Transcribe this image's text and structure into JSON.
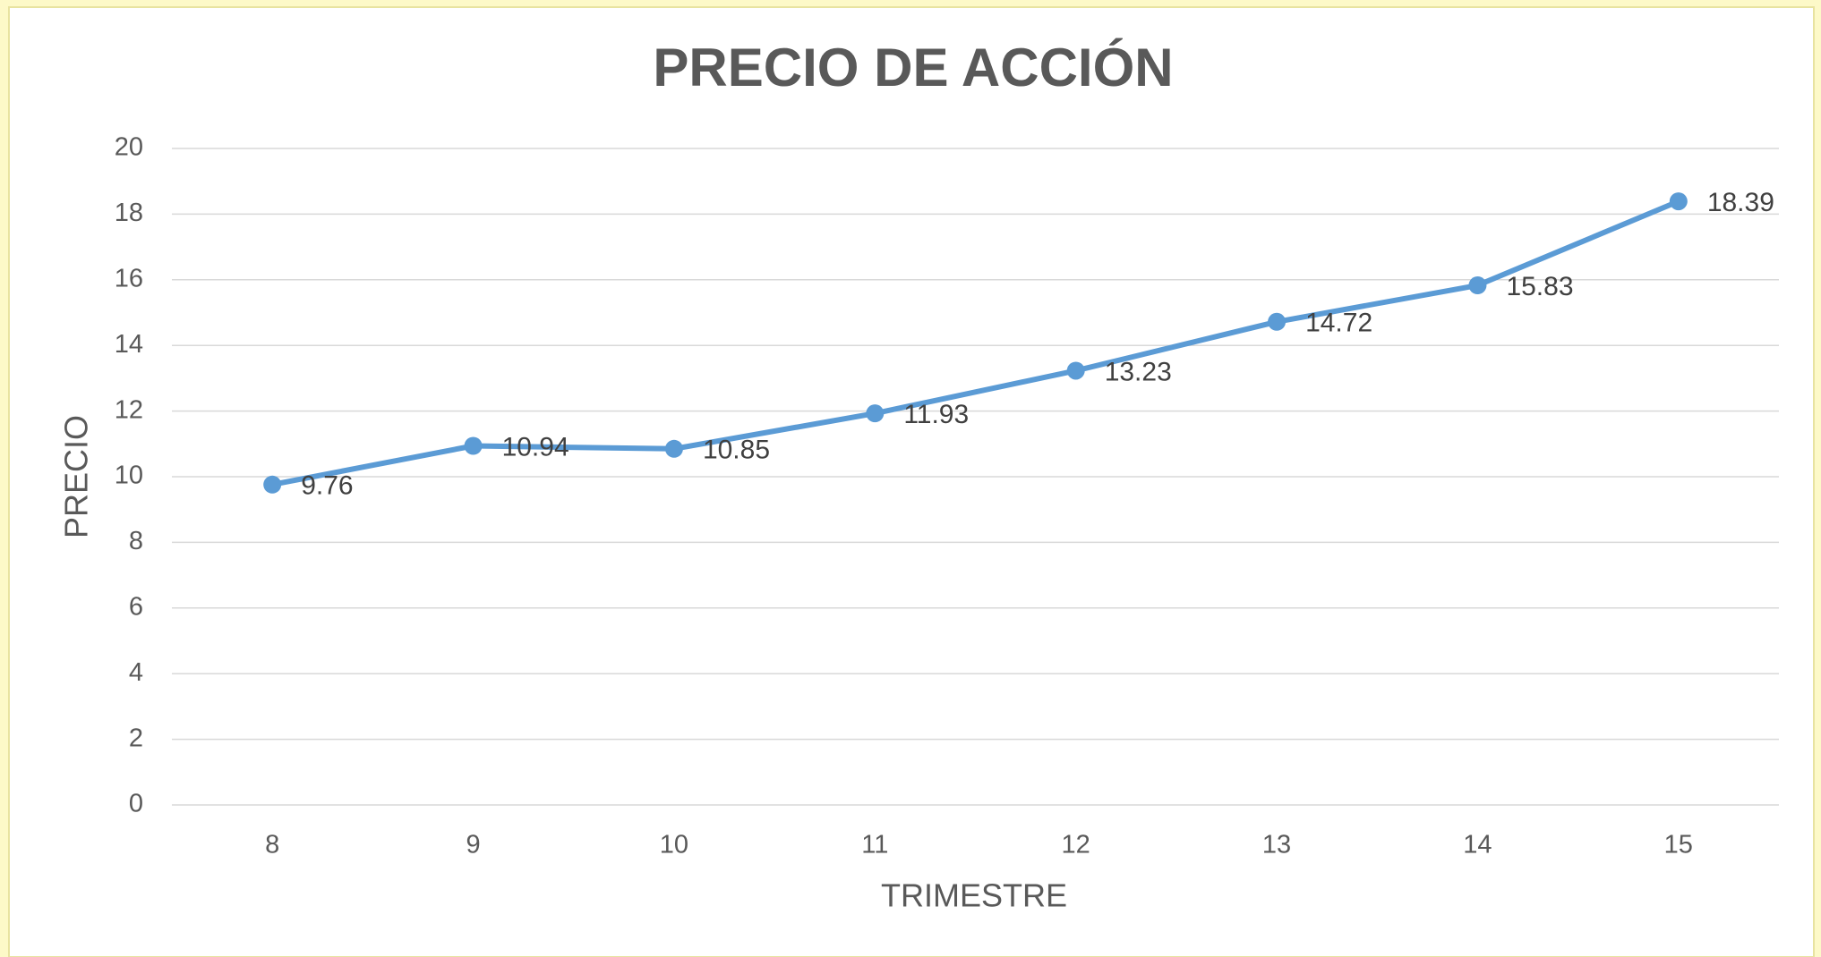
{
  "chart_data": {
    "type": "line",
    "title": "PRECIO DE ACCIÓN",
    "x_label": "TRIMESTRE",
    "y_label": "PRECIO",
    "categories": [
      "8",
      "9",
      "10",
      "11",
      "12",
      "13",
      "14",
      "15"
    ],
    "series": [
      {
        "name": "PRECIO",
        "color": "#5b9bd5",
        "values": [
          9.76,
          10.94,
          10.85,
          11.93,
          13.23,
          14.72,
          15.83,
          18.39
        ]
      }
    ],
    "ylim": [
      0,
      20
    ],
    "yticks": [
      0,
      2,
      4,
      6,
      8,
      10,
      12,
      14,
      16,
      18,
      20
    ],
    "grid": true
  }
}
